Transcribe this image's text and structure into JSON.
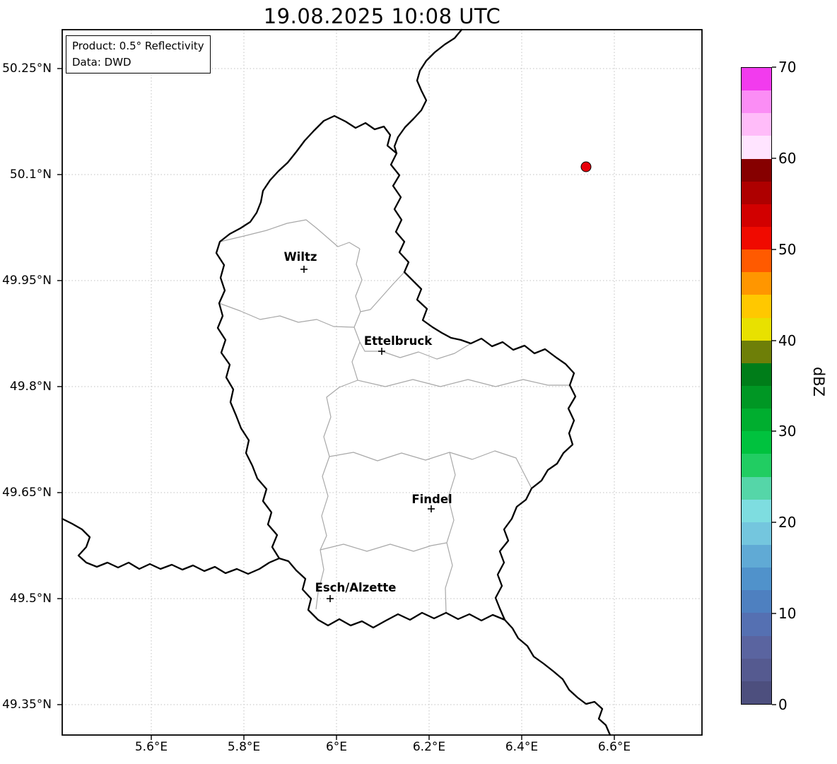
{
  "title": "19.08.2025 10:08 UTC",
  "annotation": {
    "product": "Product: 0.5° Reflectivity",
    "data_source": "Data: DWD"
  },
  "map": {
    "x_tick_labels": [
      "5.6°E",
      "5.8°E",
      "6°E",
      "6.2°E",
      "6.4°E",
      "6.6°E"
    ],
    "y_tick_labels": [
      "50.25°N",
      "50.1°N",
      "49.95°N",
      "49.8°N",
      "49.65°N",
      "49.5°N",
      "49.35°N"
    ],
    "cities": [
      {
        "name": "Wiltz"
      },
      {
        "name": "Ettelbruck"
      },
      {
        "name": "Findel"
      },
      {
        "name": "Esch/Alzette"
      }
    ],
    "radar_marker_color": "#e8000b",
    "border_color": "#000000",
    "district_border_color": "#a8a8a8"
  },
  "colorbar": {
    "label": "dBZ",
    "tick_labels": [
      "70",
      "60",
      "50",
      "40",
      "30",
      "20",
      "10",
      "0"
    ],
    "value_min": 0,
    "value_max": 70,
    "colors_bottom_to_top": [
      "#4d4f7e",
      "#555a90",
      "#5a64a0",
      "#5570b2",
      "#4e80c0",
      "#5092cb",
      "#60aad5",
      "#74c6de",
      "#7edde0",
      "#55d6a8",
      "#21cd62",
      "#00c23e",
      "#00ae2f",
      "#009724",
      "#007d19",
      "#6e7f08",
      "#e8e100",
      "#ffc800",
      "#ff9600",
      "#ff5a00",
      "#f00a00",
      "#d20000",
      "#ae0000",
      "#860000",
      "#ffe4ff",
      "#ffbcf9",
      "#fb8df5",
      "#f23bee"
    ]
  }
}
